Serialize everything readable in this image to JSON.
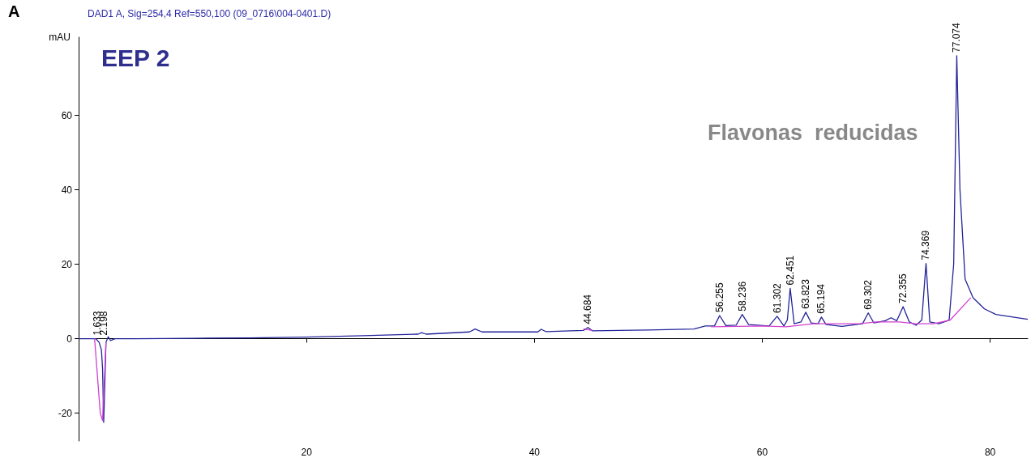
{
  "chart_data": {
    "type": "line",
    "title": "DAD1 A, Sig=254,4 Ref=550,100 (09_0716\\004-0401.D)",
    "ylabel": "mAU",
    "annotations": [
      "A",
      "EEP 2",
      "Flavonas  reducidas",
      {
        "text": "1.633",
        "x": 1.633,
        "y": 0
      },
      {
        "text": "2.198",
        "x": 2.198,
        "y": 0
      },
      {
        "text": "44.684",
        "x": 44.684,
        "y": 3
      },
      {
        "text": "56.255",
        "x": 56.255,
        "y": 6.2
      },
      {
        "text": "58.236",
        "x": 58.236,
        "y": 6.5
      },
      {
        "text": "61.302",
        "x": 61.302,
        "y": 6
      },
      {
        "text": "62.451",
        "x": 62.451,
        "y": 13.5
      },
      {
        "text": "63.823",
        "x": 63.823,
        "y": 7.1
      },
      {
        "text": "65.194",
        "x": 65.194,
        "y": 5.8
      },
      {
        "text": "69.302",
        "x": 69.302,
        "y": 6.9
      },
      {
        "text": "72.355",
        "x": 72.355,
        "y": 8.6
      },
      {
        "text": "74.369",
        "x": 74.369,
        "y": 20.2
      },
      {
        "text": "77.074",
        "x": 77.074,
        "y": 76
      }
    ],
    "series": [
      {
        "color": "#23239a",
        "x": [
          0,
          1.5,
          1.8,
          2.0,
          2.1,
          2.2,
          2.3,
          2.4,
          2.6,
          2.8,
          3.2,
          5,
          10,
          15,
          20,
          25,
          29.8,
          30.1,
          30.5,
          34.3,
          34.8,
          35.4,
          40.3,
          40.6,
          41,
          44.3,
          44.7,
          45.1,
          50,
          54,
          55,
          55.8,
          56.26,
          56.8,
          57.7,
          58.24,
          58.8,
          60.6,
          61.3,
          61.9,
          62.2,
          62.45,
          62.8,
          63.4,
          63.82,
          64.3,
          64.9,
          65.19,
          65.6,
          67,
          68.8,
          69.3,
          69.8,
          70.8,
          71.3,
          71.8,
          72.36,
          72.9,
          73.5,
          74.0,
          74.37,
          74.7,
          75.5,
          76.4,
          76.8,
          77.07,
          77.35,
          77.8,
          78.5,
          79.5,
          80.5,
          82,
          83.3
        ],
        "values": [
          0,
          0,
          -1,
          -3,
          -8,
          -22.5,
          -12,
          -1,
          0.5,
          -0.5,
          0,
          0,
          0.1,
          0.2,
          0.4,
          0.8,
          1.2,
          1.6,
          1.2,
          1.8,
          2.6,
          1.8,
          1.8,
          2.5,
          1.9,
          2.2,
          3,
          2.1,
          2.3,
          2.6,
          3.4,
          3.4,
          6.2,
          3.5,
          3.6,
          6.5,
          3.8,
          3.4,
          6,
          3.4,
          5,
          13.5,
          4,
          4.5,
          7.1,
          4.2,
          4,
          5.8,
          3.8,
          3.3,
          4,
          6.9,
          4.2,
          4.8,
          5.6,
          4.8,
          8.6,
          4.5,
          3.6,
          5,
          20.2,
          4.5,
          4,
          5,
          20,
          76,
          40,
          16,
          11,
          8,
          6.5,
          5.8,
          5.2
        ]
      },
      {
        "color": "#d040d0",
        "x": [
          1.4,
          1.9,
          2.1,
          2.4,
          2.6,
          44.3,
          45.1,
          45.2,
          55.5,
          60,
          62.1,
          64.5,
          66,
          68.5,
          70,
          72,
          73.5,
          75,
          76.5,
          78.3
        ],
        "values": [
          0,
          -20,
          -22,
          -1,
          null,
          2.6,
          2.2,
          null,
          3.2,
          3.4,
          3.2,
          4,
          4,
          4,
          4.5,
          4.5,
          4,
          4,
          5,
          11
        ]
      }
    ],
    "xlim": [
      0,
      83.3
    ],
    "xticks": [
      20,
      40,
      60,
      80
    ],
    "ylim": [
      -27.5,
      81
    ],
    "yticks": [
      -20,
      0,
      20,
      40,
      60
    ],
    "marker": "none",
    "line_style": "solid"
  }
}
